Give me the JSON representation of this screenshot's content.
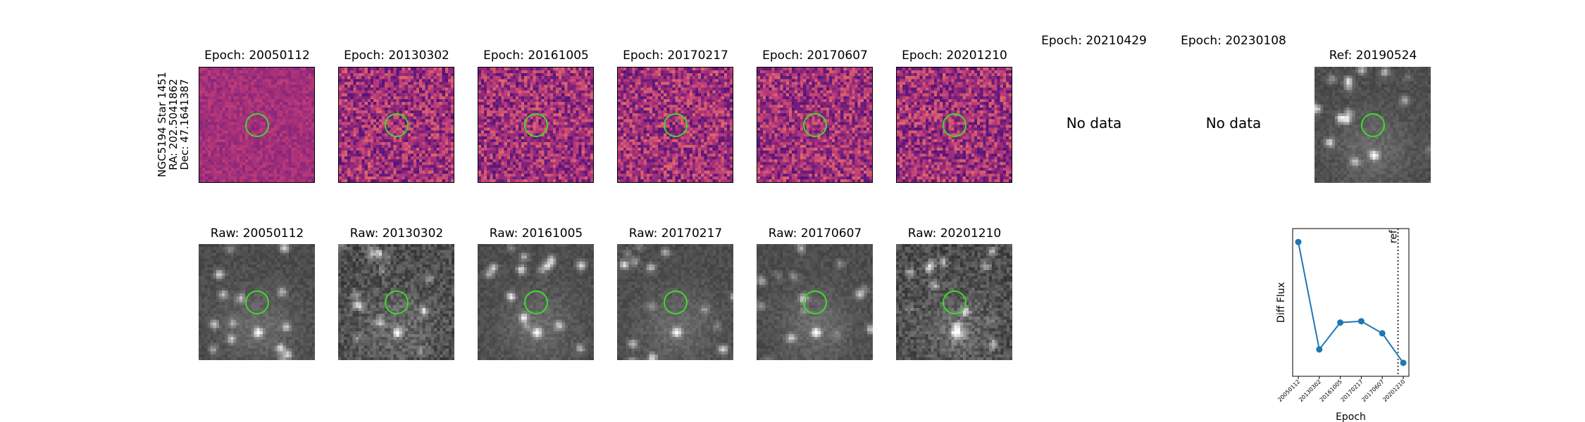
{
  "side_label": {
    "line1": "NGC5194 Star 1451",
    "line2": "RA: 202.5041862",
    "line3": "Dec: 47.1641387"
  },
  "diff_panels": [
    {
      "title": "Epoch: 20050112",
      "has_data": true
    },
    {
      "title": "Epoch: 20130302",
      "has_data": true
    },
    {
      "title": "Epoch: 20161005",
      "has_data": true
    },
    {
      "title": "Epoch: 20170217",
      "has_data": true
    },
    {
      "title": "Epoch: 20170607",
      "has_data": true
    },
    {
      "title": "Epoch: 20201210",
      "has_data": true
    },
    {
      "title": "Epoch: 20210429",
      "has_data": false,
      "message": "No data"
    },
    {
      "title": "Epoch: 20230108",
      "has_data": false,
      "message": "No data"
    }
  ],
  "ref_panel": {
    "title": "Ref: 20190524"
  },
  "raw_panels": [
    {
      "title": "Raw: 20050112"
    },
    {
      "title": "Raw: 20130302"
    },
    {
      "title": "Raw: 20161005"
    },
    {
      "title": "Raw: 20170217"
    },
    {
      "title": "Raw: 20170607"
    },
    {
      "title": "Raw: 20201210"
    }
  ],
  "colors": {
    "diff_cmap": "magma",
    "raw_cmap": "gray",
    "aperture": "#3ddc2a",
    "series": "#1f77b4"
  },
  "chart_data": {
    "type": "line",
    "categories": [
      "20050112",
      "20130302",
      "20161005",
      "20170217",
      "20170607",
      "20201210"
    ],
    "values": [
      1.0,
      0.2,
      0.4,
      0.41,
      0.32,
      0.1
    ],
    "xlabel": "Epoch",
    "ylabel": "Diff Flux",
    "ylim": [
      0.0,
      1.1
    ],
    "reference_line": {
      "after_index": 4.75,
      "label": "ref",
      "style": "dotted"
    },
    "grid": false,
    "legend": "none"
  }
}
